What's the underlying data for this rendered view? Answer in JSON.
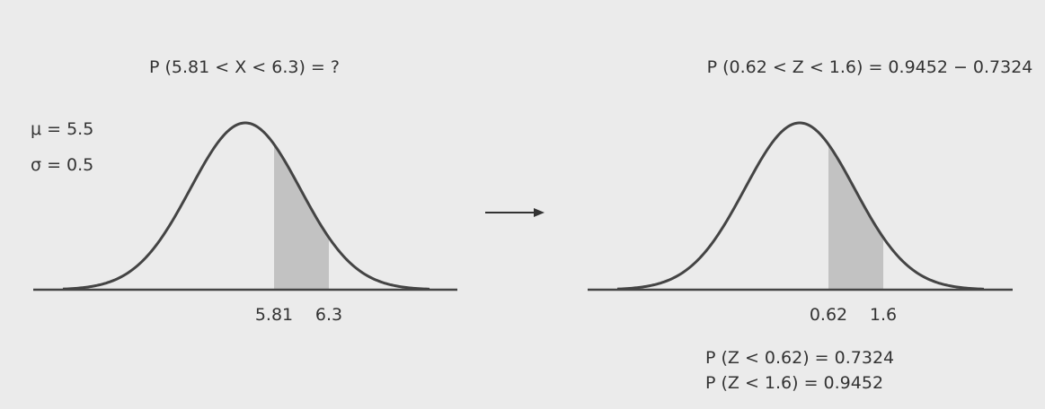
{
  "colors": {
    "background": "#ebebeb",
    "curve": "#444444",
    "shade": "#c2c2c2",
    "text": "#333333"
  },
  "left_panel": {
    "question": "P (5.81 < X < 6.3) = ?",
    "mu_label": "μ = 5.5",
    "sigma_label": "σ = 0.5",
    "tick_low": "5.81",
    "tick_high": "6.3"
  },
  "right_panel": {
    "result": "P (0.62 < Z < 1.6) = 0.9452 − 0.7324",
    "tick_low": "0.62",
    "tick_high": "1.6",
    "note_1": "P (Z < 0.62) = 0.7324",
    "note_2": "P (Z < 1.6) = 0.9452"
  },
  "connector": "arrow-right-icon"
}
